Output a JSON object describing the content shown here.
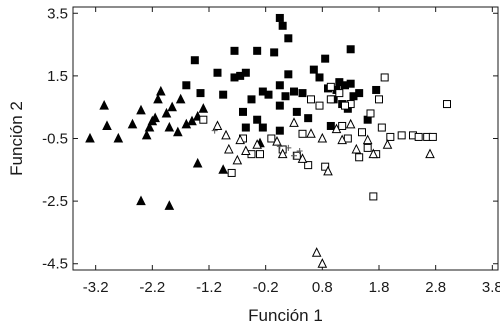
{
  "chart_data": {
    "type": "scatter",
    "xlabel": "Función 1",
    "ylabel": "Función 2",
    "xlim": [
      -3.6,
      3.9
    ],
    "ylim": [
      -4.7,
      3.7
    ],
    "xticks": [
      "-3.2",
      "-2.2",
      "-1.2",
      "-0.2",
      "0.8",
      "1.8",
      "2.8",
      "3.8"
    ],
    "yticks": [
      "3.5",
      "1.5",
      "-0.5",
      "-2.5",
      "-4.5"
    ],
    "grid": false,
    "series": [
      {
        "marker": "filled-triangle",
        "color": "#000000",
        "points": [
          [
            -3.3,
            -0.5
          ],
          [
            -3.05,
            0.55
          ],
          [
            -3.0,
            -0.1
          ],
          [
            -2.8,
            -0.5
          ],
          [
            -2.55,
            -0.05
          ],
          [
            -2.4,
            0.4
          ],
          [
            -2.3,
            -0.4
          ],
          [
            -2.25,
            -0.15
          ],
          [
            -2.2,
            0.05
          ],
          [
            -2.15,
            0.15
          ],
          [
            -2.1,
            0.75
          ],
          [
            -2.05,
            1.0
          ],
          [
            -1.95,
            0.3
          ],
          [
            -1.9,
            -0.15
          ],
          [
            -1.85,
            0.5
          ],
          [
            -1.75,
            -0.3
          ],
          [
            -1.7,
            0.75
          ],
          [
            -1.6,
            -0.05
          ],
          [
            -1.5,
            0.05
          ],
          [
            -1.4,
            0.2
          ],
          [
            -1.4,
            -1.3
          ],
          [
            -1.3,
            0.45
          ],
          [
            -0.95,
            -1.5
          ],
          [
            -0.3,
            -0.65
          ],
          [
            -2.4,
            -2.5
          ],
          [
            -1.9,
            -2.65
          ]
        ]
      },
      {
        "marker": "filled-square",
        "color": "#000000",
        "points": [
          [
            -1.6,
            1.2
          ],
          [
            -1.45,
            2.0
          ],
          [
            -1.35,
            0.95
          ],
          [
            -1.05,
            1.6
          ],
          [
            -0.95,
            0.9
          ],
          [
            -0.75,
            1.45
          ],
          [
            -0.75,
            2.3
          ],
          [
            -0.65,
            1.5
          ],
          [
            -0.55,
            1.6
          ],
          [
            -0.55,
            -0.15
          ],
          [
            -0.45,
            0.75
          ],
          [
            -0.35,
            0.1
          ],
          [
            -0.35,
            2.3
          ],
          [
            -0.25,
            1.0
          ],
          [
            -0.25,
            -0.15
          ],
          [
            -0.15,
            0.9
          ],
          [
            -0.05,
            2.25
          ],
          [
            0.05,
            1.2
          ],
          [
            0.05,
            0.55
          ],
          [
            0.1,
            3.1
          ],
          [
            0.15,
            0.85
          ],
          [
            0.2,
            1.55
          ],
          [
            0.2,
            2.7
          ],
          [
            0.3,
            1.0
          ],
          [
            0.35,
            0.35
          ],
          [
            0.45,
            0.95
          ],
          [
            0.55,
            0.15
          ],
          [
            0.65,
            1.7
          ],
          [
            0.75,
            1.45
          ],
          [
            0.85,
            2.05
          ],
          [
            0.9,
            1.1
          ],
          [
            1.0,
            0.75
          ],
          [
            1.05,
            1.05
          ],
          [
            1.1,
            1.3
          ],
          [
            1.15,
            0.6
          ],
          [
            1.2,
            1.2
          ],
          [
            1.25,
            0.45
          ],
          [
            1.3,
            1.25
          ],
          [
            1.35,
            0.85
          ],
          [
            1.45,
            0.95
          ],
          [
            1.6,
            0.1
          ],
          [
            1.75,
            1.05
          ],
          [
            0.95,
            -0.1
          ],
          [
            0.05,
            -0.25
          ],
          [
            -0.6,
            0.35
          ],
          [
            0.05,
            3.35
          ],
          [
            1.3,
            2.35
          ]
        ]
      },
      {
        "marker": "open-square",
        "color": "#000000",
        "points": [
          [
            -1.3,
            0.1
          ],
          [
            -0.8,
            -1.6
          ],
          [
            -0.6,
            -0.5
          ],
          [
            -0.45,
            -1.0
          ],
          [
            -0.3,
            -1.0
          ],
          [
            -0.1,
            -0.5
          ],
          [
            0.1,
            -0.85
          ],
          [
            0.35,
            -1.05
          ],
          [
            0.45,
            -0.35
          ],
          [
            0.55,
            -1.35
          ],
          [
            0.6,
            0.75
          ],
          [
            0.75,
            0.55
          ],
          [
            0.85,
            -1.4
          ],
          [
            0.95,
            1.15
          ],
          [
            1.1,
            0.95
          ],
          [
            1.15,
            -0.1
          ],
          [
            1.25,
            -0.5
          ],
          [
            1.3,
            0.6
          ],
          [
            1.45,
            -1.1
          ],
          [
            1.5,
            -0.3
          ],
          [
            1.6,
            -0.8
          ],
          [
            1.65,
            0.3
          ],
          [
            1.75,
            -1.0
          ],
          [
            1.8,
            0.75
          ],
          [
            1.85,
            -0.15
          ],
          [
            1.9,
            1.45
          ],
          [
            2.0,
            -0.45
          ],
          [
            2.2,
            -0.4
          ],
          [
            2.4,
            -0.4
          ],
          [
            2.5,
            -0.45
          ],
          [
            2.65,
            -0.45
          ],
          [
            2.75,
            -0.45
          ],
          [
            3.0,
            0.6
          ],
          [
            1.7,
            -2.35
          ],
          [
            1.2,
            0.55
          ],
          [
            0.95,
            0.75
          ]
        ]
      },
      {
        "marker": "open-triangle",
        "color": "#000000",
        "points": [
          [
            -1.05,
            -0.1
          ],
          [
            -0.9,
            -0.4
          ],
          [
            -0.85,
            -0.85
          ],
          [
            -0.7,
            -1.2
          ],
          [
            -0.65,
            -0.55
          ],
          [
            -0.55,
            -0.9
          ],
          [
            -0.35,
            -0.7
          ],
          [
            0.0,
            -0.6
          ],
          [
            0.1,
            -1.0
          ],
          [
            0.3,
            0.0
          ],
          [
            0.45,
            -1.15
          ],
          [
            0.6,
            -0.35
          ],
          [
            0.8,
            -0.5
          ],
          [
            0.9,
            -1.55
          ],
          [
            1.05,
            -0.2
          ],
          [
            1.15,
            -0.55
          ],
          [
            1.3,
            -0.05
          ],
          [
            1.4,
            -0.85
          ],
          [
            1.6,
            -0.55
          ],
          [
            1.7,
            -1.0
          ],
          [
            2.7,
            -1.0
          ],
          [
            1.95,
            -0.7
          ],
          [
            0.7,
            -4.15
          ],
          [
            0.8,
            -4.5
          ]
        ]
      },
      {
        "marker": "plus",
        "color": "#000000",
        "points": [
          [
            -1.1,
            -0.25
          ],
          [
            0.05,
            -0.75
          ],
          [
            0.2,
            -0.8
          ],
          [
            0.3,
            -1.05
          ],
          [
            0.4,
            -0.9
          ]
        ]
      }
    ]
  }
}
